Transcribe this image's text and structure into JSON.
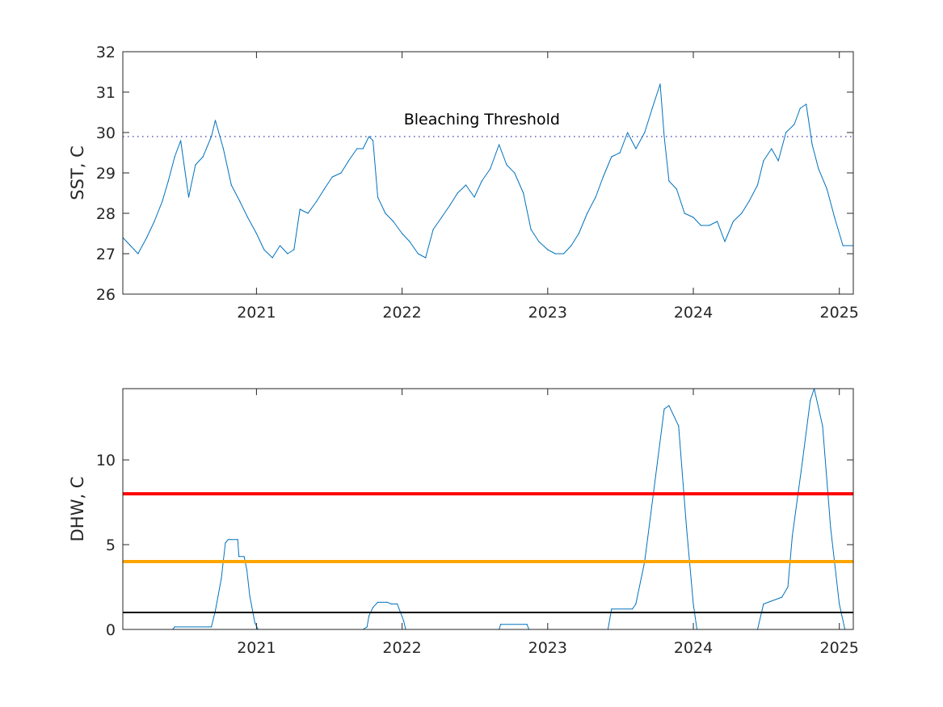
{
  "chart_data": [
    {
      "type": "line",
      "title": "",
      "xlabel": "",
      "ylabel": "SST, C",
      "xlim": [
        "2020-02-01",
        "2025-02-05"
      ],
      "ylim": [
        26,
        32
      ],
      "yticks": [
        26,
        27,
        28,
        29,
        30,
        31,
        32
      ],
      "xticks": [
        "2021-01-01",
        "2022-01-01",
        "2023-01-01",
        "2024-01-01",
        "2025-01-01"
      ],
      "xtick_labels": [
        "2021",
        "2022",
        "2023",
        "2024",
        "2025"
      ],
      "grid": false,
      "annotations": [
        {
          "text": "Bleaching Threshold",
          "x": "2022-07-20",
          "y": 30.2
        }
      ],
      "reference_lines": [
        {
          "y": 29.9,
          "style": "dotted",
          "color": "#3a3ab0"
        }
      ],
      "series": [
        {
          "color": "#0072bd",
          "x": [
            "2020-02-01",
            "2020-02-20",
            "2020-03-10",
            "2020-04-01",
            "2020-04-20",
            "2020-05-10",
            "2020-05-25",
            "2020-06-10",
            "2020-06-25",
            "2020-07-15",
            "2020-08-01",
            "2020-08-20",
            "2020-09-10",
            "2020-09-20",
            "2020-10-10",
            "2020-10-30",
            "2020-11-20",
            "2020-12-10",
            "2021-01-01",
            "2021-01-20",
            "2021-02-10",
            "2021-03-01",
            "2021-03-20",
            "2021-04-05",
            "2021-04-20",
            "2021-05-10",
            "2021-06-01",
            "2021-06-20",
            "2021-07-10",
            "2021-08-01",
            "2021-08-20",
            "2021-09-10",
            "2021-09-25",
            "2021-10-10",
            "2021-10-20",
            "2021-11-01",
            "2021-11-20",
            "2021-12-10",
            "2022-01-01",
            "2022-01-20",
            "2022-02-10",
            "2022-03-01",
            "2022-03-20",
            "2022-04-10",
            "2022-05-01",
            "2022-05-20",
            "2022-06-10",
            "2022-07-01",
            "2022-07-20",
            "2022-08-10",
            "2022-09-01",
            "2022-09-20",
            "2022-10-10",
            "2022-11-01",
            "2022-11-20",
            "2022-12-10",
            "2023-01-01",
            "2023-01-20",
            "2023-02-10",
            "2023-03-01",
            "2023-03-20",
            "2023-04-10",
            "2023-05-01",
            "2023-05-20",
            "2023-06-10",
            "2023-07-01",
            "2023-07-20",
            "2023-08-10",
            "2023-09-01",
            "2023-09-20",
            "2023-10-10",
            "2023-10-20",
            "2023-11-01",
            "2023-11-20",
            "2023-12-10",
            "2024-01-01",
            "2024-01-20",
            "2024-02-10",
            "2024-03-01",
            "2024-03-20",
            "2024-04-10",
            "2024-05-01",
            "2024-05-20",
            "2024-06-10",
            "2024-06-25",
            "2024-07-15",
            "2024-08-01",
            "2024-08-20",
            "2024-09-10",
            "2024-09-25",
            "2024-10-10",
            "2024-10-25",
            "2024-11-10",
            "2024-12-01",
            "2024-12-20",
            "2025-01-10",
            "2025-02-05"
          ],
          "y": [
            27.4,
            27.2,
            27.0,
            27.4,
            27.8,
            28.3,
            28.8,
            29.4,
            29.8,
            28.4,
            29.2,
            29.4,
            29.9,
            30.3,
            29.6,
            28.7,
            28.3,
            27.9,
            27.5,
            27.1,
            26.9,
            27.2,
            27.0,
            27.1,
            28.1,
            28.0,
            28.3,
            28.6,
            28.9,
            29.0,
            29.3,
            29.6,
            29.6,
            29.9,
            29.8,
            28.4,
            28.0,
            27.8,
            27.5,
            27.3,
            27.0,
            26.9,
            27.6,
            27.9,
            28.2,
            28.5,
            28.7,
            28.4,
            28.8,
            29.1,
            29.7,
            29.2,
            29.0,
            28.5,
            27.6,
            27.3,
            27.1,
            27.0,
            27.0,
            27.2,
            27.5,
            28.0,
            28.4,
            28.9,
            29.4,
            29.5,
            30.0,
            29.6,
            30.0,
            30.6,
            31.2,
            29.9,
            28.8,
            28.6,
            28.0,
            27.9,
            27.7,
            27.7,
            27.8,
            27.3,
            27.8,
            28.0,
            28.3,
            28.7,
            29.3,
            29.6,
            29.3,
            30.0,
            30.2,
            30.6,
            30.7,
            29.7,
            29.1,
            28.6,
            27.9,
            27.2,
            27.2
          ]
        }
      ]
    },
    {
      "type": "line",
      "title": "",
      "xlabel": "",
      "ylabel": "DHW, C",
      "xlim": [
        "2020-02-01",
        "2025-02-05"
      ],
      "ylim": [
        0,
        14.2
      ],
      "yticks": [
        0,
        5,
        10
      ],
      "xticks": [
        "2021-01-01",
        "2022-01-01",
        "2023-01-01",
        "2024-01-01",
        "2025-01-01"
      ],
      "xtick_labels": [
        "2021",
        "2022",
        "2023",
        "2024",
        "2025"
      ],
      "grid": false,
      "reference_lines": [
        {
          "y": 8,
          "color": "#ff0000",
          "style": "solid"
        },
        {
          "y": 4,
          "color": "#ffa500",
          "style": "solid"
        },
        {
          "y": 1,
          "color": "#000000",
          "style": "solid"
        }
      ],
      "series": [
        {
          "color": "#0072bd",
          "x": [
            "2020-02-01",
            "2020-06-05",
            "2020-06-10",
            "2020-09-10",
            "2020-09-20",
            "2020-10-05",
            "2020-10-15",
            "2020-10-22",
            "2020-10-28",
            "2020-11-15",
            "2020-11-18",
            "2020-12-01",
            "2020-12-08",
            "2020-12-15",
            "2020-12-28",
            "2021-01-05",
            "2021-09-25",
            "2021-10-05",
            "2021-10-10",
            "2021-10-20",
            "2021-11-01",
            "2021-11-25",
            "2021-12-05",
            "2021-12-20",
            "2022-01-05",
            "2022-01-10",
            "2022-09-01",
            "2022-09-05",
            "2022-11-10",
            "2022-11-15",
            "2023-06-01",
            "2023-06-10",
            "2023-08-01",
            "2023-08-10",
            "2023-09-01",
            "2023-10-01",
            "2023-10-20",
            "2023-11-01",
            "2023-11-25",
            "2023-12-15",
            "2024-01-01",
            "2024-01-10",
            "2024-06-10",
            "2024-06-25",
            "2024-08-10",
            "2024-08-25",
            "2024-09-05",
            "2024-10-01",
            "2024-10-20",
            "2024-10-30",
            "2024-11-20",
            "2024-12-10",
            "2025-01-01",
            "2025-01-15",
            "2025-02-05"
          ],
          "y": [
            0,
            0,
            0.15,
            0.15,
            1.1,
            3.0,
            5.1,
            5.3,
            5.3,
            5.3,
            4.3,
            4.3,
            3.5,
            2.0,
            0.4,
            0,
            0,
            0.15,
            0.8,
            1.3,
            1.6,
            1.6,
            1.5,
            1.5,
            0.5,
            0,
            0,
            0.3,
            0.3,
            0,
            0,
            1.2,
            1.2,
            1.5,
            4.0,
            9.5,
            13.0,
            13.2,
            12.0,
            6.0,
            1.5,
            0,
            0,
            1.5,
            1.9,
            2.5,
            5.5,
            10.0,
            13.5,
            14.2,
            12.0,
            6.0,
            1.5,
            0,
            0
          ]
        }
      ]
    }
  ]
}
